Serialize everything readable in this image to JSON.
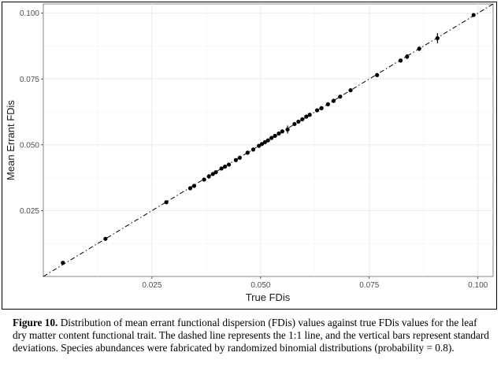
{
  "chart_data": {
    "type": "scatter",
    "xlabel": "True FDis",
    "ylabel": "Mean Errant FDis",
    "x_ticks": [
      "0.025",
      "0.050",
      "0.075",
      "0.100"
    ],
    "y_ticks": [
      "0.025",
      "0.050",
      "0.075",
      "0.100"
    ],
    "xlim": [
      0.0,
      0.1035
    ],
    "ylim": [
      0.0,
      0.1035
    ],
    "grid": true,
    "reference_line": {
      "slope": 1,
      "intercept": 0,
      "style": "dashdot"
    },
    "points": [
      {
        "x": 0.0045,
        "y": 0.0052,
        "sd": 0.0004
      },
      {
        "x": 0.0143,
        "y": 0.0143,
        "sd": 0.0004
      },
      {
        "x": 0.0283,
        "y": 0.0282,
        "sd": 0.0006
      },
      {
        "x": 0.0338,
        "y": 0.0335,
        "sd": 0.0005
      },
      {
        "x": 0.0347,
        "y": 0.0344,
        "sd": 0.0005
      },
      {
        "x": 0.037,
        "y": 0.0368,
        "sd": 0.0006
      },
      {
        "x": 0.0381,
        "y": 0.038,
        "sd": 0.0009
      },
      {
        "x": 0.039,
        "y": 0.0389,
        "sd": 0.0006
      },
      {
        "x": 0.0397,
        "y": 0.0396,
        "sd": 0.0006
      },
      {
        "x": 0.041,
        "y": 0.041,
        "sd": 0.0007
      },
      {
        "x": 0.0418,
        "y": 0.0417,
        "sd": 0.0007
      },
      {
        "x": 0.0427,
        "y": 0.0425,
        "sd": 0.0006
      },
      {
        "x": 0.0443,
        "y": 0.0442,
        "sd": 0.0006
      },
      {
        "x": 0.0452,
        "y": 0.0451,
        "sd": 0.0006
      },
      {
        "x": 0.047,
        "y": 0.047,
        "sd": 0.0005
      },
      {
        "x": 0.0483,
        "y": 0.0482,
        "sd": 0.0005
      },
      {
        "x": 0.0496,
        "y": 0.0496,
        "sd": 0.0005
      },
      {
        "x": 0.0503,
        "y": 0.0503,
        "sd": 0.0005
      },
      {
        "x": 0.051,
        "y": 0.051,
        "sd": 0.0005
      },
      {
        "x": 0.0517,
        "y": 0.0517,
        "sd": 0.0005
      },
      {
        "x": 0.0525,
        "y": 0.0526,
        "sd": 0.0006
      },
      {
        "x": 0.0533,
        "y": 0.0534,
        "sd": 0.0006
      },
      {
        "x": 0.0542,
        "y": 0.0543,
        "sd": 0.0007
      },
      {
        "x": 0.055,
        "y": 0.0551,
        "sd": 0.0008
      },
      {
        "x": 0.0562,
        "y": 0.0558,
        "sd": 0.0015
      },
      {
        "x": 0.0578,
        "y": 0.0579,
        "sd": 0.0006
      },
      {
        "x": 0.0587,
        "y": 0.0588,
        "sd": 0.0006
      },
      {
        "x": 0.0596,
        "y": 0.0597,
        "sd": 0.0007
      },
      {
        "x": 0.0605,
        "y": 0.0607,
        "sd": 0.0007
      },
      {
        "x": 0.0613,
        "y": 0.0614,
        "sd": 0.0007
      },
      {
        "x": 0.063,
        "y": 0.0631,
        "sd": 0.0007
      },
      {
        "x": 0.064,
        "y": 0.0639,
        "sd": 0.0008
      },
      {
        "x": 0.0655,
        "y": 0.0654,
        "sd": 0.0007
      },
      {
        "x": 0.0668,
        "y": 0.0667,
        "sd": 0.0008
      },
      {
        "x": 0.0683,
        "y": 0.0683,
        "sd": 0.0005
      },
      {
        "x": 0.0707,
        "y": 0.0707,
        "sd": 0.0005
      },
      {
        "x": 0.0768,
        "y": 0.0765,
        "sd": 0.0005
      },
      {
        "x": 0.0822,
        "y": 0.082,
        "sd": 0.0006
      },
      {
        "x": 0.0837,
        "y": 0.0835,
        "sd": 0.0009
      },
      {
        "x": 0.0865,
        "y": 0.0865,
        "sd": 0.0009
      },
      {
        "x": 0.0907,
        "y": 0.0905,
        "sd": 0.0019
      },
      {
        "x": 0.099,
        "y": 0.0993,
        "sd": 0.0004
      }
    ]
  },
  "caption": {
    "label": "Figure 10.",
    "text": " Distribution of mean errant functional dispersion (FDis) values against true FDis values for the leaf dry matter content functional trait. The dashed line represents the 1:1 line, and the vertical bars represent standard deviations. Species abundances were fabricated by randomized binomial distributions (probability = 0.8)."
  }
}
